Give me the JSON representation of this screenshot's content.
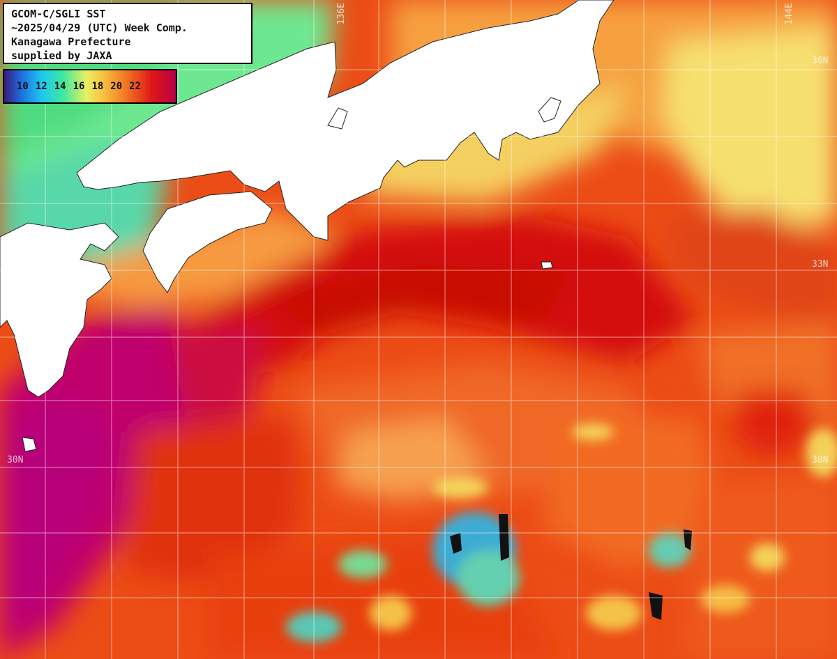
{
  "info": {
    "line1": "GCOM-C/SGLI SST",
    "line2": "~2025/04/29 (UTC) Week Comp.",
    "line3": "Kanagawa Prefecture",
    "line4": "supplied by JAXA"
  },
  "legend": {
    "values": [
      "10",
      "12",
      "14",
      "16",
      "18",
      "20",
      "22"
    ]
  },
  "grid_labels": {
    "lon_136": "136E",
    "lon_144": "144E",
    "lat_36": "36N",
    "lat_33": "33N",
    "lat_30_left": "30N",
    "lat_30_right": "30N"
  },
  "colors": {
    "land": "#ffffff",
    "grid": "#ffffff",
    "warm_core": "#d8120c",
    "warm": "#ee4a14",
    "mild": "#f8a040",
    "cool": "#f4e060",
    "cold": "#60e8a0",
    "colder": "#22b8e8",
    "hot": "#c0006a"
  }
}
